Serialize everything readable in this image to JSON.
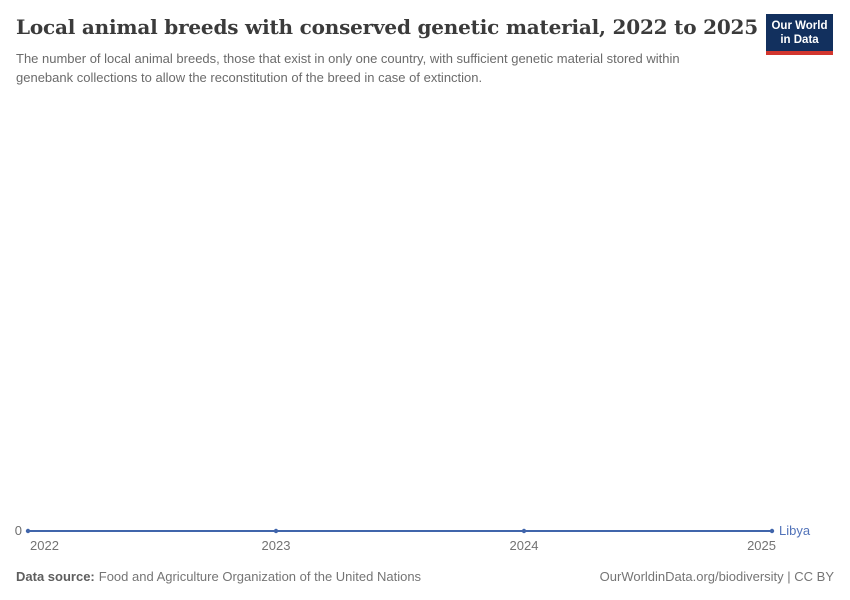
{
  "header": {
    "title": "Local animal breeds with conserved genetic material, 2022 to 2025",
    "subtitle": "The number of local animal breeds, those that exist in only one country, with sufficient genetic material stored within genebank collections to allow the reconstitution of the breed in case of extinction.",
    "logo": {
      "line1": "Our World",
      "line2": "in Data"
    }
  },
  "chart_data": {
    "type": "line",
    "title": "Local animal breeds with conserved genetic material, 2022 to 2025",
    "x": [
      2022,
      2023,
      2024,
      2025
    ],
    "x_ticks": [
      "2022",
      "2023",
      "2024",
      "2025"
    ],
    "y_ticks": [
      "0"
    ],
    "ylim": [
      0,
      null
    ],
    "grid": false,
    "legend_position": "end-of-line",
    "series": [
      {
        "name": "Libya",
        "values": [
          0,
          0,
          0,
          0
        ],
        "color": "#4065ab"
      }
    ]
  },
  "footer": {
    "source_label": "Data source:",
    "source_text": "Food and Agriculture Organization of the United Nations",
    "rights": "OurWorldinData.org/biodiversity | CC BY"
  },
  "colors": {
    "series": "#4065ab",
    "series-label": "#5273b9",
    "logo-navy": "#12305e",
    "logo-red": "#d2362e"
  }
}
